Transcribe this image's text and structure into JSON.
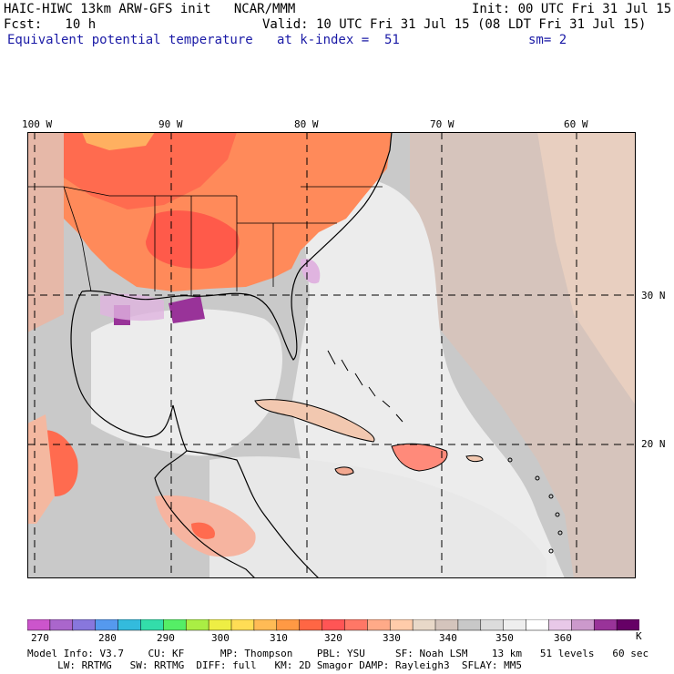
{
  "header": {
    "model_title": "HAIC-HIWC 13km ARW-GFS init   NCAR/MMM",
    "init": "Init: 00 UTC Fri 31 Jul 15",
    "fcst": "Fcst:   10 h",
    "valid": "Valid: 10 UTC Fri 31 Jul 15 (08 LDT Fri 31 Jul 15)",
    "field": "Equivalent potential temperature",
    "level": "at k-index =  51",
    "smoothing": "sm= 2"
  },
  "map": {
    "longitude_labels": [
      "100 W",
      "90 W",
      "80 W",
      "70 W",
      "60 W"
    ],
    "latitude_labels": [
      "30 N",
      "20 N"
    ],
    "colors": {
      "land_outline": "#000000",
      "grid": "#000000"
    }
  },
  "colorbar": {
    "unit": "K",
    "ticks": [
      "270",
      "280",
      "290",
      "300",
      "310",
      "320",
      "330",
      "340",
      "350",
      "360"
    ],
    "colors": [
      "#cc55cc",
      "#aa66cc",
      "#8877dd",
      "#5599ee",
      "#33bbdd",
      "#33ddaa",
      "#55ee66",
      "#aaee44",
      "#eeee44",
      "#ffdd55",
      "#ffbb55",
      "#ff9944",
      "#ff6644",
      "#ff5555",
      "#ff7766",
      "#ffaa88",
      "#ffccaa",
      "#e8d8c8",
      "#d4c4bc",
      "#c8c8c8",
      "#dcdcdc",
      "#eeeeee",
      "#ffffff",
      "#e8c8e8",
      "#cc99cc",
      "#993399",
      "#660066"
    ]
  },
  "footer": {
    "line1": "Model Info: V3.7    CU: KF      MP: Thompson    PBL: YSU     SF: Noah LSM    13 km   51 levels   60 sec",
    "line2": "     LW: RRTMG   SW: RRTMG  DIFF: full   KM: 2D Smagor DAMP: Rayleigh3  SFLAY: MM5"
  }
}
